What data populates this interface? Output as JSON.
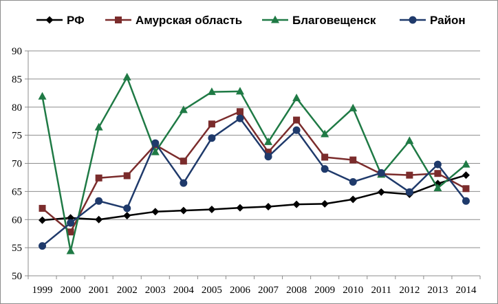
{
  "chart_data": {
    "type": "line",
    "title": "",
    "xlabel": "",
    "ylabel": "",
    "ylim": [
      50,
      90
    ],
    "yticks": [
      50,
      55,
      60,
      65,
      70,
      75,
      80,
      85,
      90
    ],
    "grid": "horizontal",
    "legend_position": "top",
    "categories": [
      "1999",
      "2000",
      "2001",
      "2002",
      "2003",
      "2004",
      "2005",
      "2006",
      "2007",
      "2008",
      "2009",
      "2010",
      "2011",
      "2012",
      "2013",
      "2014"
    ],
    "series": [
      {
        "name": "РФ",
        "color": "#000000",
        "marker": "diamond",
        "values": [
          59.9,
          60.3,
          60.0,
          60.7,
          61.4,
          61.6,
          61.8,
          62.1,
          62.3,
          62.7,
          62.8,
          63.6,
          64.9,
          64.5,
          66.4,
          67.9
        ]
      },
      {
        "name": "Амурская область",
        "color": "#7b2c2c",
        "marker": "square",
        "values": [
          62.0,
          57.8,
          67.4,
          67.8,
          73.3,
          70.4,
          77.0,
          79.2,
          72.0,
          77.7,
          71.1,
          70.6,
          68.1,
          67.9,
          68.2,
          65.5
        ]
      },
      {
        "name": "Благовещенск",
        "color": "#1f7a45",
        "marker": "triangle",
        "values": [
          81.9,
          54.4,
          76.4,
          85.3,
          72.0,
          79.5,
          82.7,
          82.8,
          73.8,
          81.6,
          75.2,
          79.8,
          68.0,
          74.0,
          65.6,
          69.8
        ]
      },
      {
        "name": "Район",
        "color": "#1f3a6b",
        "marker": "circle",
        "values": [
          55.3,
          59.4,
          63.3,
          62.0,
          73.6,
          66.5,
          74.5,
          78.0,
          71.2,
          75.9,
          69.0,
          66.7,
          68.3,
          64.9,
          69.8,
          63.3
        ]
      }
    ]
  }
}
